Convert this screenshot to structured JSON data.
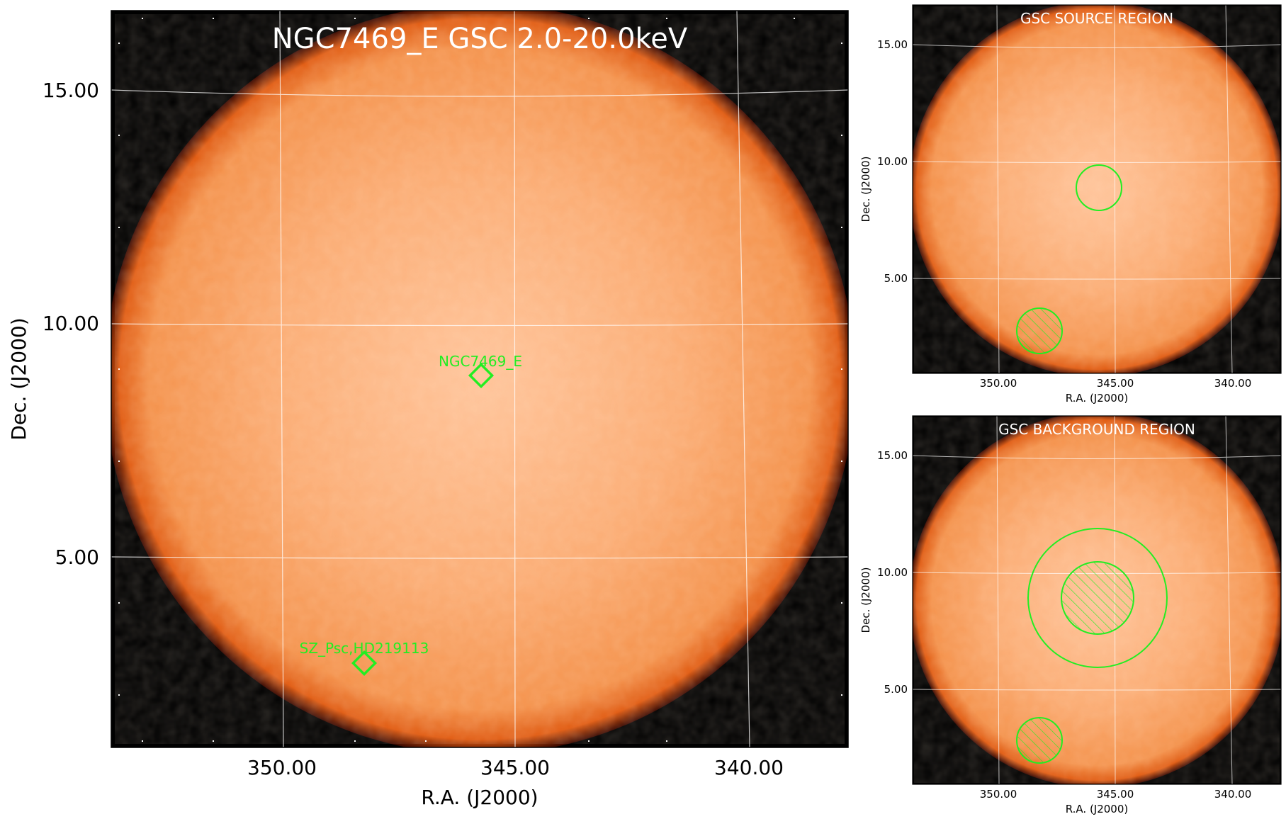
{
  "main_panel": {
    "title": "NGC7469_E GSC 2.0-20.0keV",
    "xlabel": "R.A. (J2000)",
    "ylabel": "Dec. (J2000)",
    "xticks": [
      "350.00",
      "345.00",
      "340.00"
    ],
    "yticks": [
      "15.00",
      "10.00",
      "5.00"
    ],
    "sources": [
      {
        "name": "NGC7469_E",
        "ra": 345.8,
        "dec": 8.9
      },
      {
        "name": "SZ_Psc,HD219113",
        "ra": 348.3,
        "dec": 2.7
      }
    ]
  },
  "source_panel": {
    "title": "GSC SOURCE REGION",
    "xlabel": "R.A. (J2000)",
    "ylabel": "Dec. (J2000)",
    "xticks": [
      "350.00",
      "345.00",
      "340.00"
    ],
    "yticks": [
      "15.00",
      "10.00",
      "5.00"
    ]
  },
  "background_panel": {
    "title": "GSC BACKGROUND REGION",
    "xlabel": "R.A. (J2000)",
    "ylabel": "Dec. (J2000)",
    "xticks": [
      "350.00",
      "345.00",
      "340.00"
    ],
    "yticks": [
      "15.00",
      "10.00",
      "5.00"
    ]
  },
  "colors": {
    "disk_center": "#ffc49a",
    "disk_mid": "#fba060",
    "disk_edge": "#f27a2a",
    "sky": "#000000",
    "region": "#22ee22",
    "grid": "#ffffff"
  }
}
